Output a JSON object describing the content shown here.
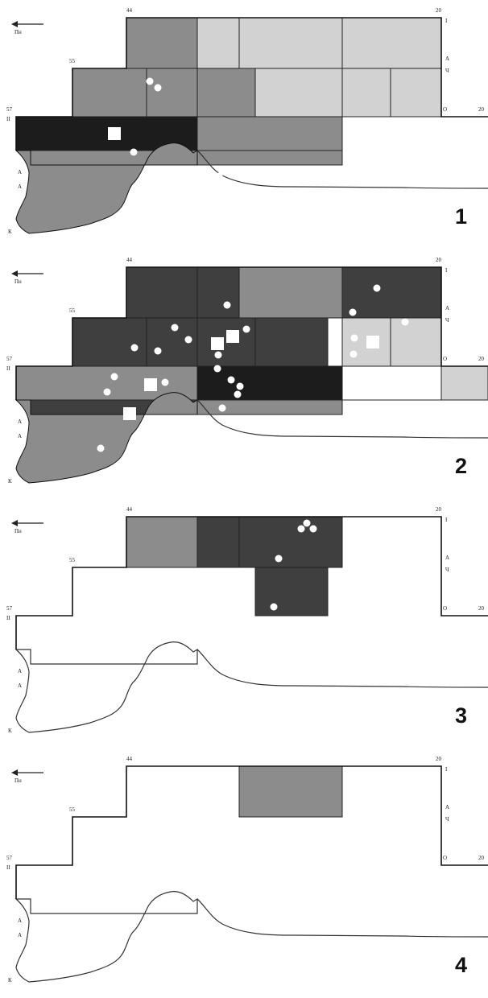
{
  "figure": {
    "north_arrow_label": "Пн",
    "corner_labels": {
      "top_left": "57",
      "step_1": "55",
      "step_2": "44",
      "top_right": "20",
      "right_mid": "20",
      "left_letter": "II",
      "bottom_letter": "К",
      "right_top_letter": "I",
      "right_mid_letter": "О"
    },
    "side_letters_right": [
      "А",
      "Ч"
    ],
    "side_letters_left": [
      "А",
      "А"
    ],
    "panels": [
      {
        "number": "1"
      },
      {
        "number": "2"
      },
      {
        "number": "3"
      },
      {
        "number": "4"
      }
    ]
  },
  "legend_colors": {
    "very_dark": "#1c1c1c",
    "dark": "#3f3f3f",
    "medium": "#8c8c8c",
    "light": "#d2d2d2",
    "empty": "#ffffff"
  },
  "cells": [
    [
      {
        "id": "r1a",
        "shade": "medium"
      },
      {
        "id": "r1b",
        "shade": "light"
      },
      {
        "id": "r1c",
        "shade": "light"
      },
      {
        "id": "r1d",
        "shade": "light"
      },
      {
        "id": "r2a",
        "shade": "medium"
      },
      {
        "id": "r2b",
        "shade": "medium"
      },
      {
        "id": "r2c",
        "shade": "medium"
      },
      {
        "id": "r2d",
        "shade": "light"
      },
      {
        "id": "r2e",
        "shade": "light"
      },
      {
        "id": "r2f",
        "shade": "light"
      },
      {
        "id": "r3a",
        "shade": "very_dark"
      },
      {
        "id": "r3b",
        "shade": "medium"
      },
      {
        "id": "r4a",
        "shade": "medium"
      },
      {
        "id": "r4b",
        "shade": "medium"
      },
      {
        "id": "coast",
        "shade": "medium"
      }
    ],
    [
      {
        "id": "r1a",
        "shade": "dark"
      },
      {
        "id": "r1b",
        "shade": "dark"
      },
      {
        "id": "r1c",
        "shade": "medium"
      },
      {
        "id": "r1d",
        "shade": "dark"
      },
      {
        "id": "r2a",
        "shade": "dark"
      },
      {
        "id": "r2b",
        "shade": "dark"
      },
      {
        "id": "r2c",
        "shade": "dark"
      },
      {
        "id": "r2d",
        "shade": "dark"
      },
      {
        "id": "r2e",
        "shade": "light"
      },
      {
        "id": "r2f",
        "shade": "light"
      },
      {
        "id": "r3a",
        "shade": "medium"
      },
      {
        "id": "r3b",
        "shade": "very_dark"
      },
      {
        "id": "r3c",
        "shade": "empty"
      },
      {
        "id": "r3d",
        "shade": "light"
      },
      {
        "id": "r4a",
        "shade": "dark"
      },
      {
        "id": "r4b",
        "shade": "medium"
      },
      {
        "id": "coast",
        "shade": "medium"
      }
    ],
    [
      {
        "id": "r1a",
        "shade": "medium"
      },
      {
        "id": "r1b",
        "shade": "dark"
      },
      {
        "id": "r1c",
        "shade": "dark"
      },
      {
        "id": "r2c",
        "shade": "dark"
      }
    ],
    [
      {
        "id": "r1c",
        "shade": "medium"
      }
    ]
  ]
}
